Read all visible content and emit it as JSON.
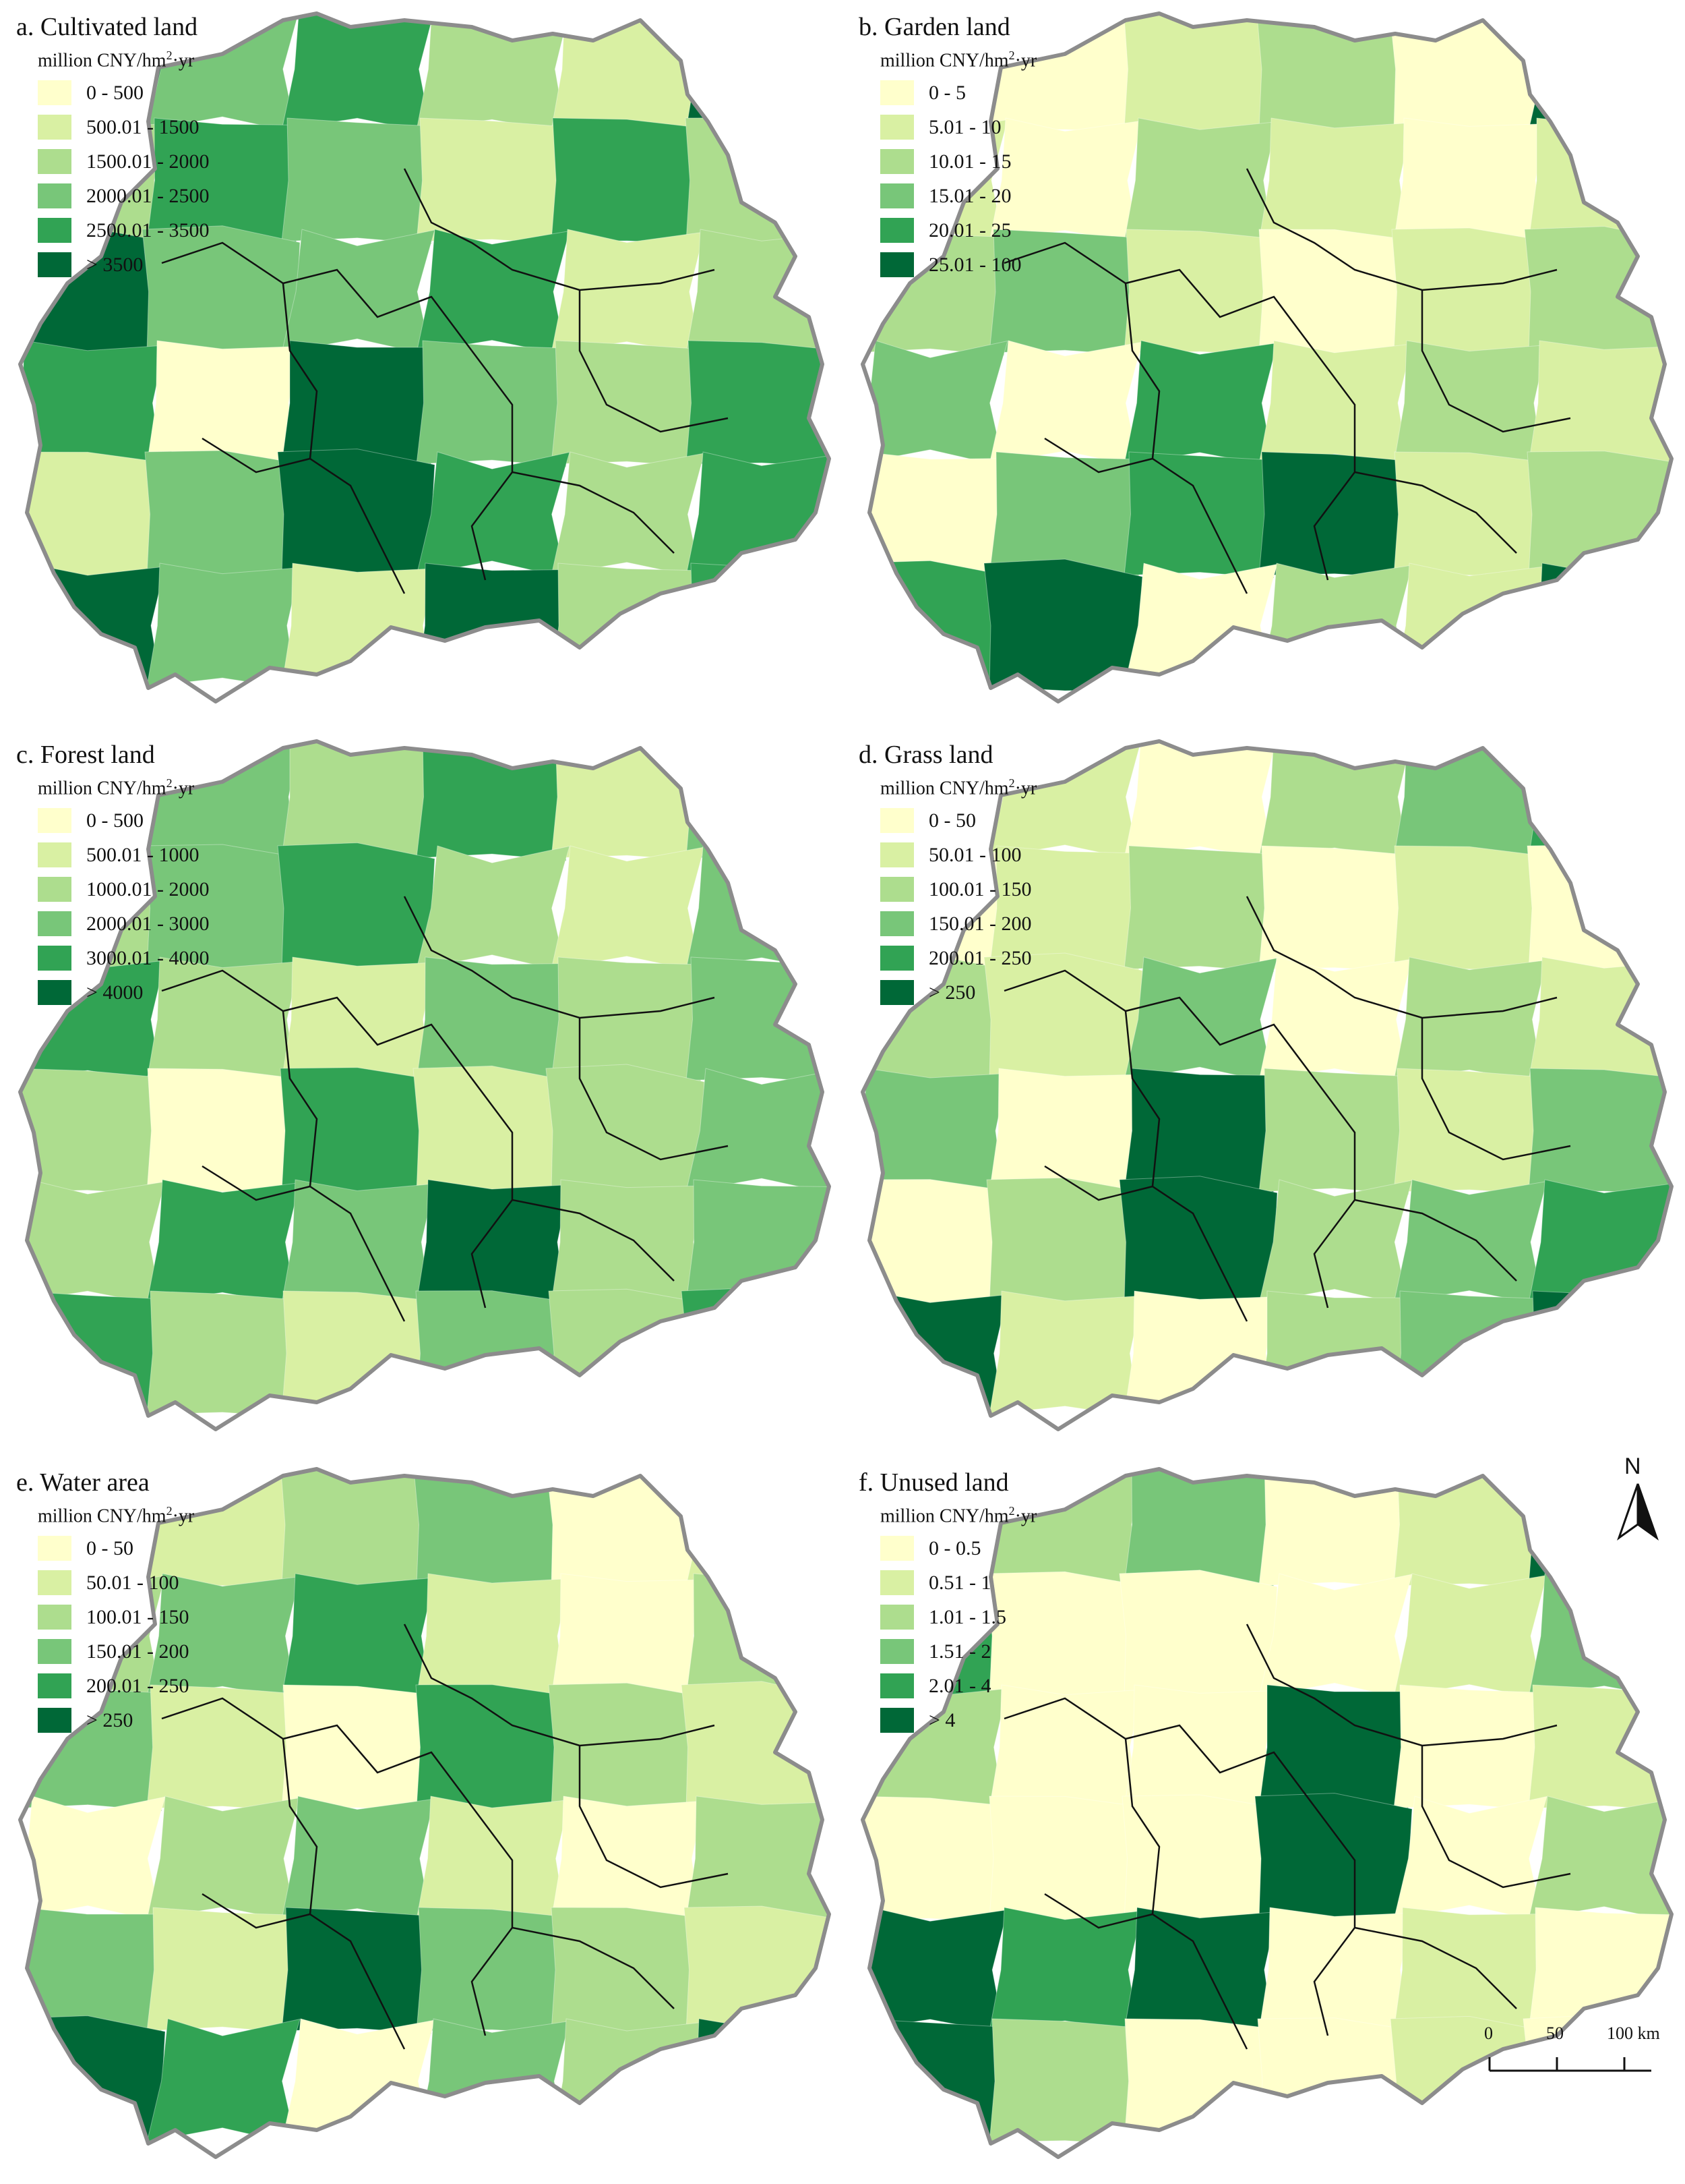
{
  "map": {
    "unit_prefix": "million CNY/hm",
    "unit_sup": "2",
    "unit_suffix": "·yr",
    "colors": [
      "#ffffcc",
      "#d9f0a3",
      "#addd8e",
      "#78c679",
      "#31a354",
      "#006837"
    ],
    "boundary_colors": {
      "province": "#8c8c8c",
      "city": "#111111"
    },
    "panels": [
      {
        "title": "a. Cultivated land",
        "legend": [
          "0 - 500",
          "500.01 - 1500",
          "1500.01 - 2000",
          "2000.01 - 2500",
          "2500.01 - 3500",
          "> 3500"
        ],
        "fills": [
          5,
          3,
          4,
          2,
          1,
          5,
          2,
          4,
          3,
          1,
          4,
          2,
          5,
          3,
          3,
          4,
          1,
          2,
          4,
          0,
          5,
          3,
          2,
          4,
          1,
          3,
          5,
          4,
          2,
          4,
          5,
          3,
          1,
          5,
          2,
          4
        ]
      },
      {
        "title": "b. Garden land",
        "legend": [
          "0 - 5",
          "5.01 - 10",
          "10.01 - 15",
          "15.01 - 20",
          "20.01 - 25",
          "25.01 - 100"
        ],
        "fills": [
          1,
          0,
          1,
          2,
          0,
          5,
          1,
          0,
          2,
          1,
          0,
          1,
          2,
          3,
          1,
          0,
          1,
          2,
          3,
          0,
          4,
          1,
          2,
          1,
          0,
          3,
          4,
          5,
          1,
          2,
          4,
          5,
          0,
          2,
          1,
          5
        ]
      },
      {
        "title": "c. Forest land",
        "legend": [
          "0 - 500",
          "500.01 - 1000",
          "1000.01 - 2000",
          "2000.01 - 3000",
          "3000.01 - 4000",
          "> 4000"
        ],
        "fills": [
          5,
          3,
          2,
          4,
          1,
          3,
          2,
          3,
          4,
          2,
          1,
          3,
          4,
          2,
          1,
          3,
          2,
          3,
          2,
          0,
          4,
          1,
          2,
          3,
          2,
          4,
          3,
          5,
          2,
          3,
          4,
          2,
          1,
          3,
          2,
          4
        ]
      },
      {
        "title": "d. Grass land",
        "legend": [
          "0 - 50",
          "50.01 - 100",
          "100.01 - 150",
          "150.01 - 200",
          "200.01 - 250",
          "> 250"
        ],
        "fills": [
          5,
          1,
          0,
          2,
          3,
          4,
          0,
          1,
          2,
          0,
          1,
          0,
          2,
          1,
          3,
          0,
          2,
          1,
          3,
          0,
          5,
          2,
          1,
          3,
          0,
          2,
          5,
          2,
          3,
          4,
          5,
          1,
          0,
          2,
          3,
          5
        ]
      },
      {
        "title": "e. Water area",
        "legend": [
          "0 - 50",
          "50.01 - 100",
          "100.01 - 150",
          "150.01 - 200",
          "200.01 - 250",
          "> 250"
        ],
        "fills": [
          5,
          1,
          2,
          3,
          0,
          1,
          2,
          3,
          4,
          1,
          0,
          2,
          3,
          1,
          0,
          4,
          2,
          1,
          0,
          2,
          3,
          1,
          0,
          2,
          3,
          1,
          5,
          3,
          2,
          1,
          5,
          4,
          0,
          3,
          2,
          5
        ]
      },
      {
        "title": "f. Unused land",
        "legend": [
          "0 - 0.5",
          "0.51 - 1",
          "1.01 - 1.5",
          "1.51 - 2",
          "2.01 - 4",
          "> 4"
        ],
        "fills": [
          5,
          2,
          3,
          0,
          1,
          5,
          4,
          0,
          0,
          0,
          1,
          3,
          2,
          0,
          0,
          5,
          0,
          1,
          0,
          0,
          0,
          5,
          0,
          2,
          5,
          4,
          5,
          0,
          1,
          0,
          5,
          2,
          0,
          0,
          1,
          0
        ]
      }
    ],
    "north_label": "N",
    "scale": {
      "ticks": [
        "0",
        "50",
        "100 km"
      ]
    }
  }
}
